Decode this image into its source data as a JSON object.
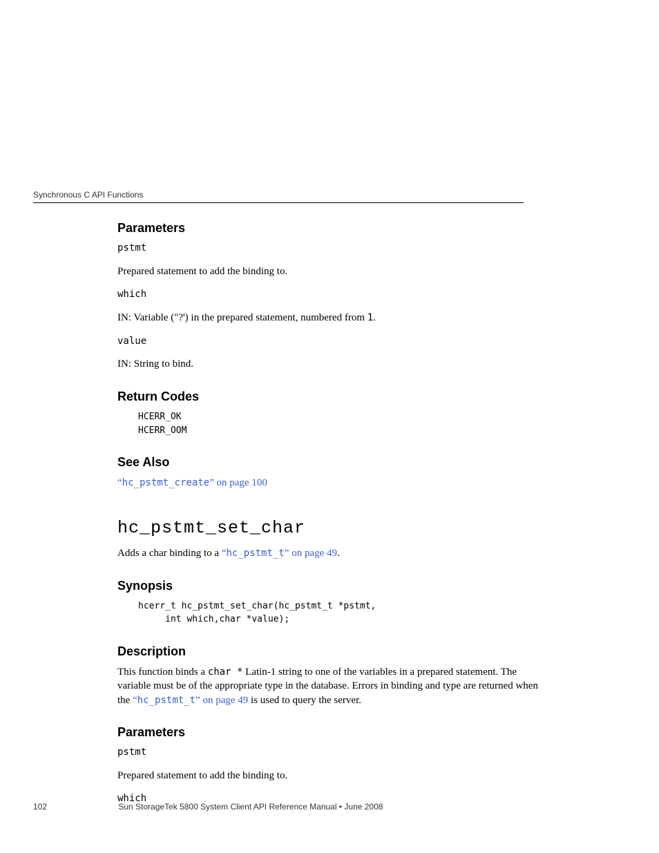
{
  "runningHeader": "Synchronous C API Functions",
  "sections": {
    "parameters1": {
      "heading": "Parameters",
      "p1_code": "pstmt",
      "p1_desc": "Prepared statement to add the binding to.",
      "p2_code": "which",
      "p2_desc_prefix": "IN: Variable (\"?') in the prepared statement, numbered from ",
      "p2_desc_code": "1",
      "p2_desc_suffix": ".",
      "p3_code": "value",
      "p3_desc": "IN: String to bind."
    },
    "returnCodes": {
      "heading": "Return Codes",
      "code": "HCERR_OK\nHCERR_OOM"
    },
    "seeAlso": {
      "heading": "See Also",
      "link_quote_open": "“",
      "link_code": "hc_pstmt_create",
      "link_suffix": "” on page 100"
    },
    "func": {
      "heading": "hc_pstmt_set_char",
      "intro_prefix": "Adds a char binding to a ",
      "intro_link_quote_open": "“",
      "intro_link_code": "hc_pstmt_t",
      "intro_link_suffix": "” on page 49",
      "intro_suffix": "."
    },
    "synopsis": {
      "heading": "Synopsis",
      "code": "hcerr_t hc_pstmt_set_char(hc_pstmt_t *pstmt,\n     int which,char *value);"
    },
    "description": {
      "heading": "Description",
      "p_prefix": "This function binds a ",
      "p_code": "char *",
      "p_mid": " Latin-1 string to one of the variables in a prepared statement. The variable must be of the appropriate type in the database. Errors in binding and type are returned when the ",
      "p_link_quote_open": "“",
      "p_link_code": "hc_pstmt_t",
      "p_link_suffix": "” on page 49",
      "p_suffix": " is used to query the server."
    },
    "parameters2": {
      "heading": "Parameters",
      "p1_code": "pstmt",
      "p1_desc": "Prepared statement to add the binding to.",
      "p2_code": "which"
    }
  },
  "footer": {
    "page": "102",
    "title": "Sun StorageTek 5800 System Client API Reference Manual  •  June 2008"
  }
}
